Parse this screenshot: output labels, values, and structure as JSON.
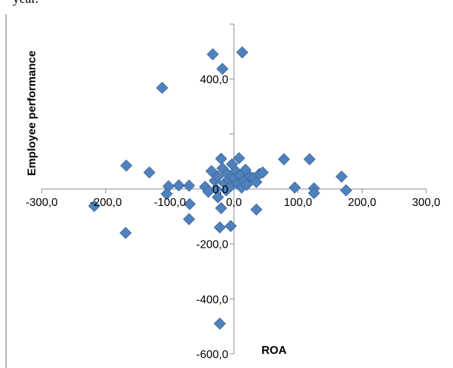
{
  "caption": "year.",
  "chart_data": {
    "type": "scatter",
    "xlabel": "ROA",
    "ylabel": "Employee performance",
    "xlim": [
      -300,
      300
    ],
    "ylim": [
      -600,
      600
    ],
    "x_ticks": [
      -300,
      -200,
      -100,
      0,
      100,
      200,
      300
    ],
    "x_tick_labels": [
      "-300,0",
      "-200,0",
      "-100,0",
      "0,0",
      "100,0",
      "200,0",
      "300,0"
    ],
    "y_ticks": [
      -600,
      -400,
      -200,
      0,
      200,
      400,
      600
    ],
    "y_tick_labels": [
      "-600,0",
      "-400,0",
      "-200,0",
      "0,0",
      "",
      "400,0",
      ""
    ],
    "marker_color": "#4f81bd",
    "marker_stroke": "#3a6496",
    "grid": false,
    "points": [
      {
        "x": -33,
        "y": 490
      },
      {
        "x": 13,
        "y": 497
      },
      {
        "x": -18,
        "y": 437
      },
      {
        "x": -112,
        "y": 368
      },
      {
        "x": -168,
        "y": 85
      },
      {
        "x": -132,
        "y": 60
      },
      {
        "x": -218,
        "y": -62
      },
      {
        "x": -169,
        "y": -160
      },
      {
        "x": -102,
        "y": 10
      },
      {
        "x": -105,
        "y": -18
      },
      {
        "x": -86,
        "y": 13
      },
      {
        "x": -70,
        "y": 12
      },
      {
        "x": -69,
        "y": -55
      },
      {
        "x": -70,
        "y": -110
      },
      {
        "x": -45,
        "y": 8
      },
      {
        "x": -40,
        "y": -10
      },
      {
        "x": -35,
        "y": 65
      },
      {
        "x": -30,
        "y": 30
      },
      {
        "x": -28,
        "y": 0
      },
      {
        "x": -25,
        "y": 45
      },
      {
        "x": -20,
        "y": 110
      },
      {
        "x": -18,
        "y": 75
      },
      {
        "x": -15,
        "y": 20
      },
      {
        "x": -12,
        "y": -5
      },
      {
        "x": -10,
        "y": 55
      },
      {
        "x": -8,
        "y": 35
      },
      {
        "x": -5,
        "y": 10
      },
      {
        "x": -3,
        "y": 90
      },
      {
        "x": 0,
        "y": 40
      },
      {
        "x": 3,
        "y": 65
      },
      {
        "x": 5,
        "y": 20
      },
      {
        "x": 8,
        "y": 112
      },
      {
        "x": 10,
        "y": 50
      },
      {
        "x": 12,
        "y": 5
      },
      {
        "x": 15,
        "y": 30
      },
      {
        "x": 18,
        "y": 70
      },
      {
        "x": 20,
        "y": 15
      },
      {
        "x": 25,
        "y": 45
      },
      {
        "x": 30,
        "y": 40
      },
      {
        "x": 35,
        "y": 25
      },
      {
        "x": 40,
        "y": 55
      },
      {
        "x": 45,
        "y": 60
      },
      {
        "x": -25,
        "y": -30
      },
      {
        "x": -20,
        "y": -70
      },
      {
        "x": -22,
        "y": -140
      },
      {
        "x": -5,
        "y": -135
      },
      {
        "x": 35,
        "y": -75
      },
      {
        "x": -22,
        "y": -490
      },
      {
        "x": 78,
        "y": 108
      },
      {
        "x": 118,
        "y": 108
      },
      {
        "x": 168,
        "y": 45
      },
      {
        "x": 95,
        "y": 5
      },
      {
        "x": 125,
        "y": 2
      },
      {
        "x": 125,
        "y": -15
      },
      {
        "x": 175,
        "y": -5
      }
    ]
  }
}
